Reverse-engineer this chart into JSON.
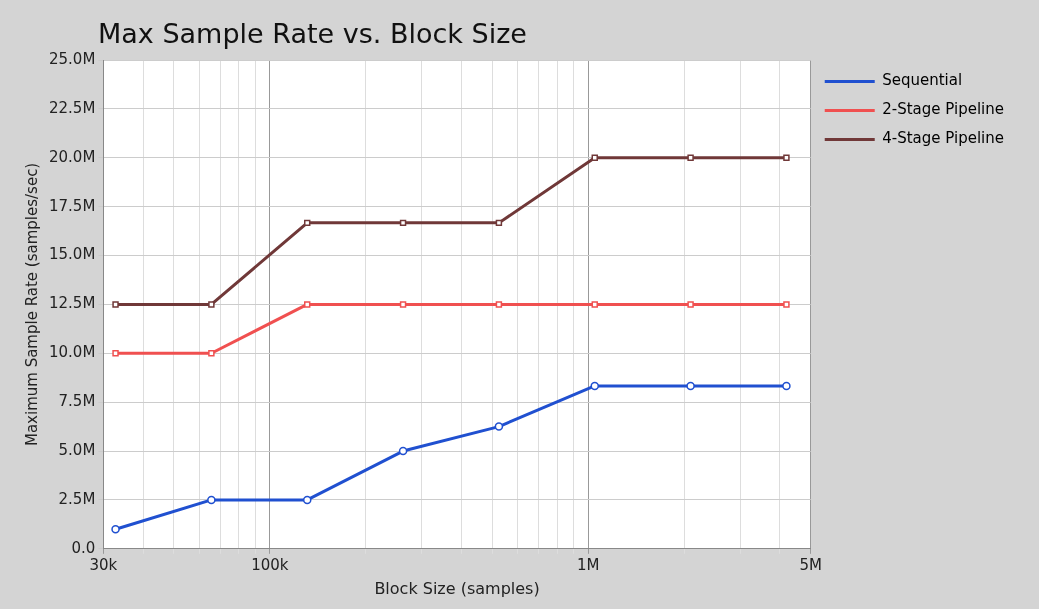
{
  "chart_data": {
    "type": "line",
    "title": "Max Sample Rate vs. Block Size",
    "xlabel": "Block Size (samples)",
    "ylabel": "Maximum Sample Rate (samples/sec)",
    "x": [
      32768,
      65536,
      131072,
      262144,
      524288,
      1048576,
      2097152,
      4194304
    ],
    "series": [
      {
        "name": "Sequential",
        "color": "#2050d0",
        "marker": "circle",
        "values": [
          1000000,
          2500000,
          2500000,
          5000000,
          6250000,
          8330000,
          8330000,
          8330000
        ]
      },
      {
        "name": "2-Stage Pipeline",
        "color": "#f05050",
        "marker": "square",
        "values": [
          10000000,
          10000000,
          12500000,
          12500000,
          12500000,
          12500000,
          12500000,
          12500000
        ]
      },
      {
        "name": "4-Stage Pipeline",
        "color": "#703838",
        "marker": "square",
        "values": [
          12500000,
          12500000,
          16670000,
          16670000,
          16670000,
          20000000,
          20000000,
          20000000
        ]
      }
    ],
    "log": "x",
    "xlim": [
      30000,
      5000000
    ],
    "xticks": [
      {
        "value": 30000,
        "label": "30k"
      },
      {
        "value": 40000,
        "label": null
      },
      {
        "value": 50000,
        "label": null
      },
      {
        "value": 60000,
        "label": null
      },
      {
        "value": 70000,
        "label": null
      },
      {
        "value": 80000,
        "label": null
      },
      {
        "value": 90000,
        "label": null
      },
      {
        "value": 100000,
        "label": "100k"
      },
      {
        "value": 200000,
        "label": null
      },
      {
        "value": 300000,
        "label": null
      },
      {
        "value": 400000,
        "label": null
      },
      {
        "value": 500000,
        "label": null
      },
      {
        "value": 600000,
        "label": null
      },
      {
        "value": 700000,
        "label": null
      },
      {
        "value": 800000,
        "label": null
      },
      {
        "value": 900000,
        "label": null
      },
      {
        "value": 1000000,
        "label": "1M"
      },
      {
        "value": 2000000,
        "label": null
      },
      {
        "value": 3000000,
        "label": null
      },
      {
        "value": 4000000,
        "label": null
      },
      {
        "value": 5000000,
        "label": "5M"
      }
    ],
    "ylim": [
      0,
      25000000
    ],
    "yticks": [
      {
        "value": 0,
        "label": "0.0"
      },
      {
        "value": 2500000,
        "label": "2.5M"
      },
      {
        "value": 5000000,
        "label": "5.0M"
      },
      {
        "value": 7500000,
        "label": "7.5M"
      },
      {
        "value": 10000000,
        "label": "10.0M"
      },
      {
        "value": 12500000,
        "label": "12.5M"
      },
      {
        "value": 15000000,
        "label": "15.0M"
      },
      {
        "value": 17500000,
        "label": "17.5M"
      },
      {
        "value": 20000000,
        "label": "20.0M"
      },
      {
        "value": 22500000,
        "label": "22.5M"
      },
      {
        "value": 25000000,
        "label": "25.0M"
      }
    ],
    "grid": true,
    "legend": "top right",
    "line_style": "solid"
  }
}
